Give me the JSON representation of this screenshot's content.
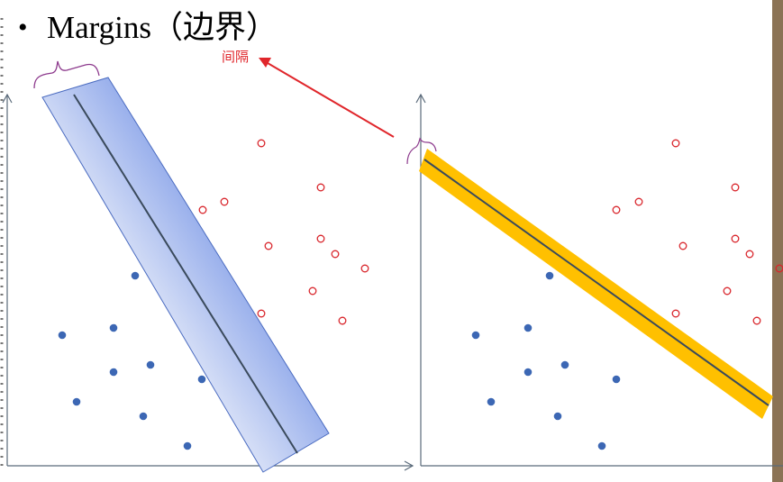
{
  "slide": {
    "bullet": "•",
    "title": "Margins（边界）",
    "annotation": "间隔"
  },
  "colors": {
    "positive": "#d9262c",
    "negative": "#3c67b4",
    "wide_margin_fill": "#a8b9ee",
    "narrow_margin_fill": "#ffc000",
    "boundary_line": "#3a4a5c",
    "arrow": "#e0262b",
    "brace": "#8d3a8d",
    "axis": "#5a6a7a",
    "sidebar": "#8b7355"
  },
  "panels": [
    {
      "name": "wide-margin",
      "negative_points": [
        [
          150,
          306
        ],
        [
          69,
          372
        ],
        [
          126,
          364
        ],
        [
          126,
          413
        ],
        [
          167,
          405
        ],
        [
          224,
          421
        ],
        [
          85,
          446
        ],
        [
          159,
          462
        ],
        [
          208,
          495
        ]
      ],
      "positive_points": [
        [
          290,
          159
        ],
        [
          356,
          208
        ],
        [
          225,
          233
        ],
        [
          249,
          224
        ],
        [
          298,
          273
        ],
        [
          356,
          265
        ],
        [
          372,
          282
        ],
        [
          405,
          298
        ],
        [
          347,
          323
        ],
        [
          290,
          348
        ],
        [
          380,
          356
        ]
      ]
    },
    {
      "name": "narrow-margin",
      "negative_points": [
        [
          610,
          306
        ],
        [
          528,
          372
        ],
        [
          586,
          364
        ],
        [
          586,
          413
        ],
        [
          627,
          405
        ],
        [
          684,
          421
        ],
        [
          545,
          446
        ],
        [
          619,
          462
        ],
        [
          668,
          495
        ]
      ],
      "positive_points": [
        [
          750,
          159
        ],
        [
          816,
          208
        ],
        [
          684,
          233
        ],
        [
          709,
          224
        ],
        [
          758,
          273
        ],
        [
          816,
          265
        ],
        [
          832,
          282
        ],
        [
          865,
          298
        ],
        [
          807,
          323
        ],
        [
          750,
          348
        ],
        [
          840,
          356
        ]
      ]
    }
  ]
}
